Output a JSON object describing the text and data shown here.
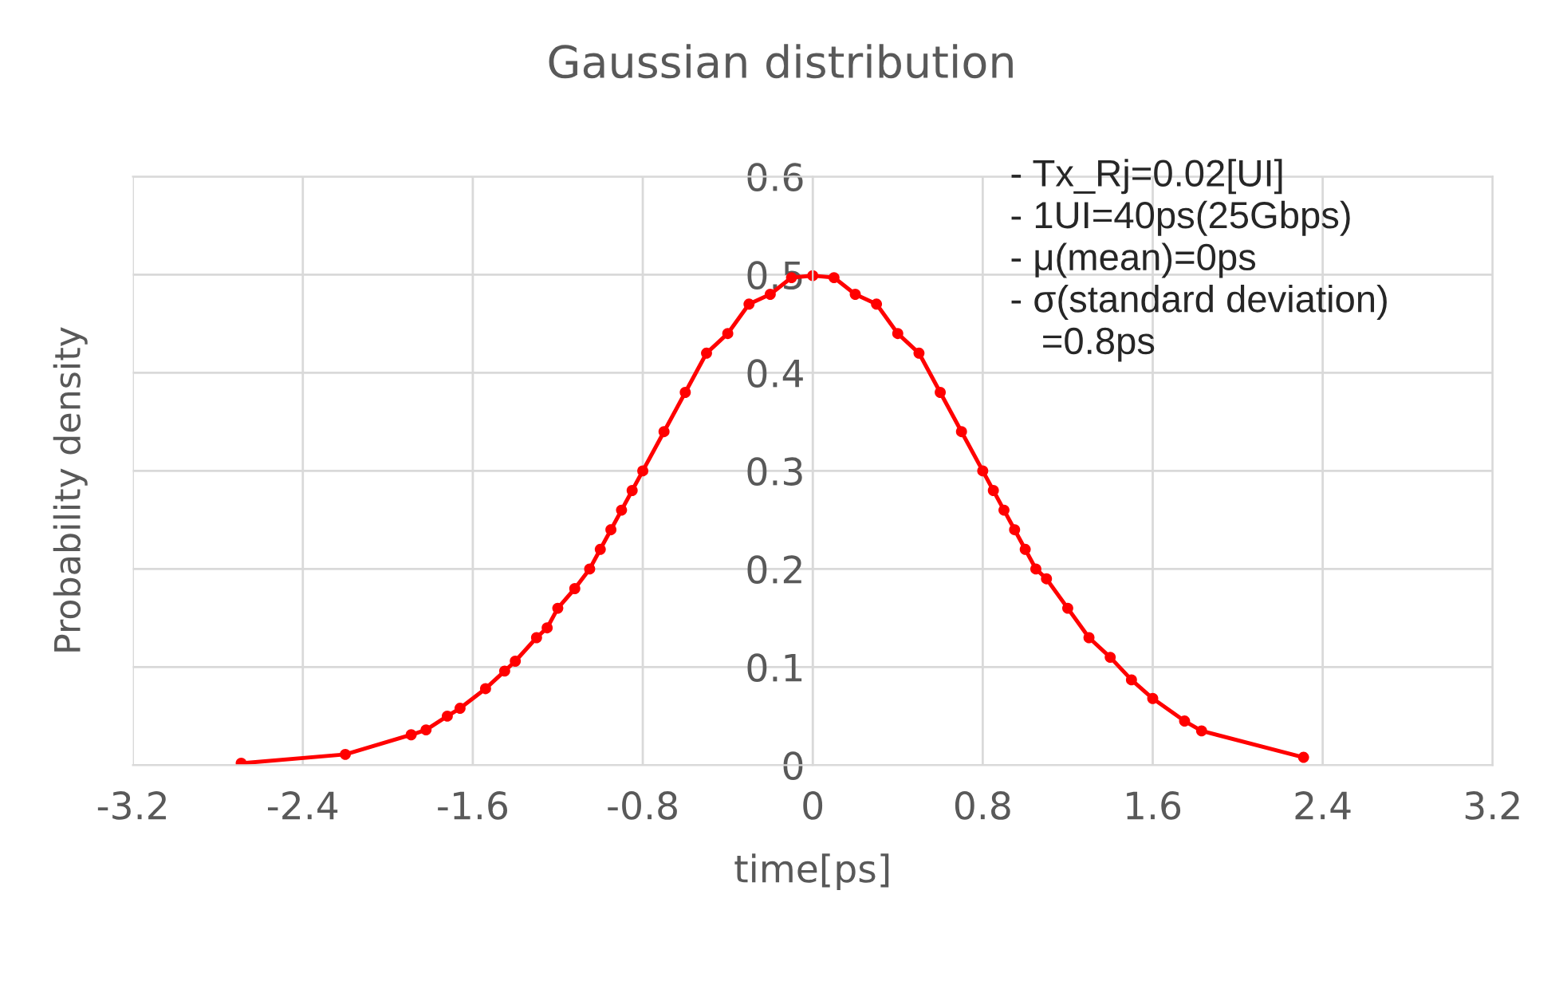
{
  "chart_data": {
    "type": "line",
    "title": "Gaussian distribution",
    "xlabel": "time[ps]",
    "ylabel": "Probability density",
    "x": [
      -2.69,
      -2.2,
      -1.89,
      -1.82,
      -1.72,
      -1.66,
      -1.54,
      -1.45,
      -1.4,
      -1.3,
      -1.25,
      -1.2,
      -1.12,
      -1.05,
      -1.0,
      -0.95,
      -0.9,
      -0.85,
      -0.8,
      -0.7,
      -0.6,
      -0.5,
      -0.4,
      -0.3,
      -0.2,
      -0.1,
      0.0,
      0.1,
      0.2,
      0.3,
      0.4,
      0.5,
      0.6,
      0.7,
      0.8,
      0.85,
      0.9,
      0.95,
      1.0,
      1.05,
      1.1,
      1.2,
      1.3,
      1.4,
      1.5,
      1.6,
      1.75,
      1.83,
      2.31
    ],
    "series": [
      {
        "color": "#ff0000",
        "values": [
          0.002,
          0.011,
          0.031,
          0.036,
          0.05,
          0.058,
          0.078,
          0.096,
          0.106,
          0.13,
          0.14,
          0.16,
          0.18,
          0.2,
          0.22,
          0.24,
          0.26,
          0.28,
          0.3,
          0.34,
          0.38,
          0.42,
          0.44,
          0.47,
          0.48,
          0.497,
          0.499,
          0.497,
          0.48,
          0.47,
          0.44,
          0.42,
          0.38,
          0.34,
          0.3,
          0.28,
          0.26,
          0.24,
          0.22,
          0.2,
          0.19,
          0.16,
          0.13,
          0.11,
          0.087,
          0.068,
          0.045,
          0.035,
          0.008
        ]
      }
    ],
    "xlim": [
      -3.2,
      3.2
    ],
    "xticks": [
      -3.2,
      -2.4,
      -1.6,
      -0.8,
      0,
      0.8,
      1.6,
      2.4,
      3.2
    ],
    "ylim": [
      0,
      0.6
    ],
    "yticks": [
      0,
      0.1,
      0.2,
      0.3,
      0.4,
      0.5,
      0.6
    ],
    "grid": true,
    "marker": "circle",
    "line_style": "solid",
    "annotations": [
      "- Tx_Rj=0.02[UI]\n- 1UI=40ps(25Gbps)\n- μ(mean)=0ps\n- σ(standard deviation)\n   =0.8ps"
    ]
  }
}
